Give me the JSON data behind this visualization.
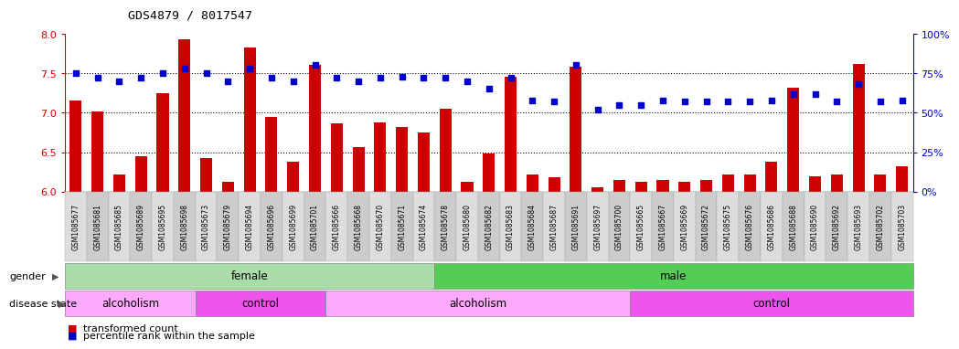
{
  "title": "GDS4879 / 8017547",
  "samples": [
    "GSM1085677",
    "GSM1085681",
    "GSM1085685",
    "GSM1085689",
    "GSM1085695",
    "GSM1085698",
    "GSM1085673",
    "GSM1085679",
    "GSM1085694",
    "GSM1085696",
    "GSM1085699",
    "GSM1085701",
    "GSM1085666",
    "GSM1085668",
    "GSM1085670",
    "GSM1085671",
    "GSM1085674",
    "GSM1085678",
    "GSM1085680",
    "GSM1085682",
    "GSM1085683",
    "GSM1085684",
    "GSM1085687",
    "GSM1085691",
    "GSM1085697",
    "GSM1085700",
    "GSM1085665",
    "GSM1085667",
    "GSM1085669",
    "GSM1085672",
    "GSM1085675",
    "GSM1085676",
    "GSM1085686",
    "GSM1085688",
    "GSM1085690",
    "GSM1085692",
    "GSM1085693",
    "GSM1085702",
    "GSM1085703"
  ],
  "bar_values": [
    7.15,
    7.02,
    6.22,
    6.45,
    7.25,
    7.93,
    6.42,
    6.12,
    7.82,
    6.95,
    6.38,
    7.6,
    6.87,
    6.57,
    6.88,
    6.82,
    6.75,
    7.05,
    6.12,
    6.48,
    7.45,
    6.22,
    6.18,
    7.58,
    6.05,
    6.15,
    6.12,
    6.15,
    6.12,
    6.15,
    6.22,
    6.22,
    6.38,
    7.32,
    6.2,
    6.22,
    7.62,
    6.22,
    6.32
  ],
  "percentile_values": [
    75,
    72,
    70,
    72,
    75,
    78,
    75,
    70,
    78,
    72,
    70,
    80,
    72,
    70,
    72,
    73,
    72,
    72,
    70,
    65,
    72,
    58,
    57,
    80,
    52,
    55,
    55,
    58,
    57,
    57,
    57,
    57,
    58,
    62,
    62,
    57,
    68,
    57,
    58
  ],
  "ylim_left": [
    6.0,
    8.0
  ],
  "ylim_right": [
    0,
    100
  ],
  "yticks_left": [
    6.0,
    6.5,
    7.0,
    7.5,
    8.0
  ],
  "yticks_right": [
    0,
    25,
    50,
    75,
    100
  ],
  "ytick_labels_right": [
    "0%",
    "25%",
    "50%",
    "75%",
    "100%"
  ],
  "bar_color": "#cc0000",
  "dot_color": "#0000cc",
  "bar_bottom": 6.0,
  "gender_groups": [
    {
      "label": "female",
      "start": 0,
      "end": 17,
      "color": "#aaddaa"
    },
    {
      "label": "male",
      "start": 17,
      "end": 39,
      "color": "#55cc55"
    }
  ],
  "disease_groups": [
    {
      "label": "alcoholism",
      "start": 0,
      "end": 6,
      "color": "#ffaaff"
    },
    {
      "label": "control",
      "start": 6,
      "end": 12,
      "color": "#ee55ee"
    },
    {
      "label": "alcoholism",
      "start": 12,
      "end": 26,
      "color": "#ffaaff"
    },
    {
      "label": "control",
      "start": 26,
      "end": 39,
      "color": "#ee55ee"
    }
  ],
  "grid_dotted_values": [
    6.5,
    7.0,
    7.5
  ],
  "background_color": "#ffffff",
  "tick_color_left": "#cc0000",
  "tick_color_right": "#0000cc",
  "xtick_box_colors": [
    "#dddddd",
    "#cccccc"
  ]
}
